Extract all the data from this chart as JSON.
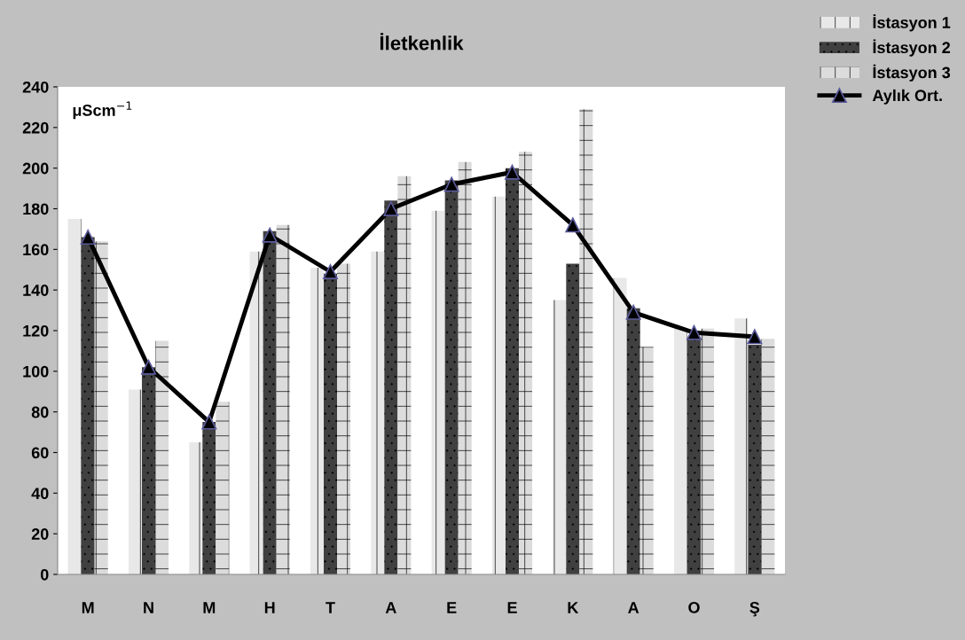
{
  "chart_data": {
    "type": "bar",
    "title": "İletkenlik",
    "categories": [
      "M",
      "N",
      "M",
      "H",
      "T",
      "A",
      "E",
      "E",
      "K",
      "A",
      "O",
      "Ş"
    ],
    "series": [
      {
        "name": "İstasyon 1",
        "color": "#e8e8e8",
        "values": [
          175,
          91,
          65,
          159,
          151,
          159,
          179,
          186,
          135,
          146,
          121,
          126
        ]
      },
      {
        "name": "İstasyon 2",
        "color": "#404040",
        "values": [
          166,
          102,
          75,
          169,
          148,
          184,
          194,
          200,
          153,
          131,
          117,
          113
        ]
      },
      {
        "name": "İstasyon 3",
        "color": "#dcdcdc",
        "values": [
          164,
          115,
          85,
          172,
          153,
          196,
          203,
          208,
          229,
          112,
          121,
          116
        ]
      },
      {
        "name": "Aylık Ort.",
        "type": "line",
        "color": "#000000",
        "marker": "triangle",
        "values": [
          166,
          102,
          75,
          167,
          149,
          180,
          192,
          198,
          172,
          129,
          119,
          117
        ]
      }
    ],
    "ylim": [
      0,
      240
    ],
    "yticks": [
      0,
      20,
      40,
      60,
      80,
      100,
      120,
      140,
      160,
      180,
      200,
      220,
      240
    ],
    "annotations": [
      "μScm$^{−1}$"
    ],
    "grid": false,
    "legend": "top right"
  }
}
